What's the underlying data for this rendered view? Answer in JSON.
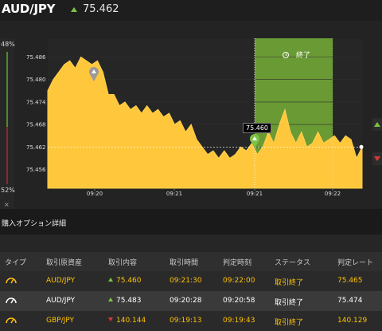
{
  "header": {
    "pair": "AUD/JPY",
    "current_price": "75.462",
    "direction_icon": "up-arrow-icon"
  },
  "chart": {
    "sentiment_top": "48%",
    "sentiment_bottom": "52%",
    "close_symbol": "×",
    "end_label": "終了",
    "price_tag": "75.460",
    "colors": {
      "area": "#ffc73c",
      "expiry_zone": "#6a9a34",
      "up": "#7cc344",
      "down": "#d9383a"
    }
  },
  "chart_data": {
    "type": "area",
    "yticks": [
      "75.486",
      "75.480",
      "75.474",
      "75.468",
      "75.462",
      "75.456"
    ],
    "xticks": [
      "09:20",
      "09:21",
      "09:21",
      "09:22"
    ],
    "ylim": [
      75.451,
      75.491
    ],
    "entry_price": 75.46,
    "current_price": 75.462,
    "series": [
      {
        "values": [
          75.477,
          75.48,
          75.482,
          75.484,
          75.485,
          75.483,
          75.486,
          75.485,
          75.484,
          75.485,
          75.482,
          75.476,
          75.476,
          75.473,
          75.474,
          75.472,
          75.473,
          75.471,
          75.473,
          75.471,
          75.472,
          75.47,
          75.471,
          75.468,
          75.469,
          75.466,
          75.468,
          75.464,
          75.462,
          75.46,
          75.461,
          75.459,
          75.461,
          75.459,
          75.46,
          75.462,
          75.461,
          75.463,
          75.46,
          75.462,
          75.466,
          75.463,
          75.468,
          75.472,
          75.466,
          75.463,
          75.466,
          75.462,
          75.463,
          75.466,
          75.463,
          75.464,
          75.465,
          75.463,
          75.465,
          75.464,
          75.459,
          75.462
        ]
      }
    ]
  },
  "details": {
    "title": "購入オプション詳細",
    "columns": [
      "タイプ",
      "取引原資産",
      "取引内容",
      "取引時間",
      "判定時刻",
      "ステータス",
      "判定レート"
    ],
    "rows": [
      {
        "type_icon": "gauge-icon",
        "asset": "AUD/JPY",
        "direction": "up",
        "price": "75.460",
        "trade_time": "09:21:30",
        "judge_time": "09:22:00",
        "status": "取引終了",
        "rate": "75.465"
      },
      {
        "type_icon": "gauge-icon",
        "asset": "AUD/JPY",
        "direction": "up",
        "price": "75.483",
        "trade_time": "09:20:28",
        "judge_time": "09:20:58",
        "status": "取引終了",
        "rate": "75.474"
      },
      {
        "type_icon": "gauge-icon",
        "asset": "GBP/JPY",
        "direction": "down",
        "price": "140.144",
        "trade_time": "09:19:13",
        "judge_time": "09:19:43",
        "status": "取引終了",
        "rate": "140.129"
      }
    ]
  }
}
